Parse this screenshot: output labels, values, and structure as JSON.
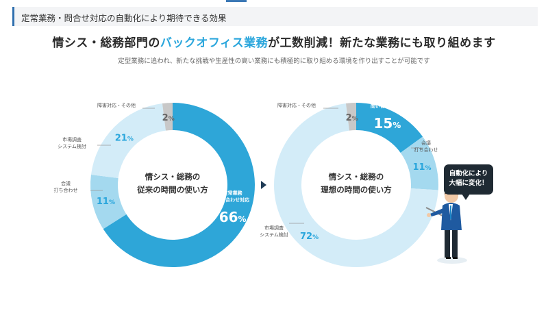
{
  "section": {
    "title": "定常業務・問合せ対応の自動化により期待できる効果"
  },
  "headline": {
    "pre": "情シス・総務部門の",
    "highlight": "バックオフィス業務",
    "post": "が工数削減！新たな業務にも取り組めます"
  },
  "subtitle": "定型業務に追われ、新たな挑戦や生産性の高い業務にも積極的に取り組める環境を作り出すことが可能です",
  "colors": {
    "dark_blue": "#2ea6d8",
    "mid_blue": "#a4d9ef",
    "light_blue": "#d3ecf8",
    "gray": "#c8c8c8",
    "accent_text": "#2aa6dc"
  },
  "chart_data": [
    {
      "type": "pie",
      "center_label": [
        "情シス・総務の",
        "従来の時間の使い方"
      ],
      "slices": [
        {
          "label": [
            "定常業務",
            "問い合わせ対応"
          ],
          "value": 66
        },
        {
          "label": [
            "会議",
            "打ち合わせ"
          ],
          "value": 11
        },
        {
          "label": [
            "市場調査",
            "システム検討"
          ],
          "value": 21
        },
        {
          "label": [
            "障害対応・その他"
          ],
          "value": 2
        }
      ]
    },
    {
      "type": "pie",
      "center_label": [
        "情シス・総務の",
        "理想の時間の使い方"
      ],
      "slices": [
        {
          "label": [
            "定常業務",
            "問い合わせ対応"
          ],
          "value": 15
        },
        {
          "label": [
            "会議",
            "打ち合わせ"
          ],
          "value": 11
        },
        {
          "label": [
            "市場調査",
            "システム検討"
          ],
          "value": 72
        },
        {
          "label": [
            "障害対応・その他"
          ],
          "value": 2
        }
      ]
    }
  ],
  "callout": {
    "lines": [
      "自動化により",
      "大幅に変化！"
    ]
  }
}
